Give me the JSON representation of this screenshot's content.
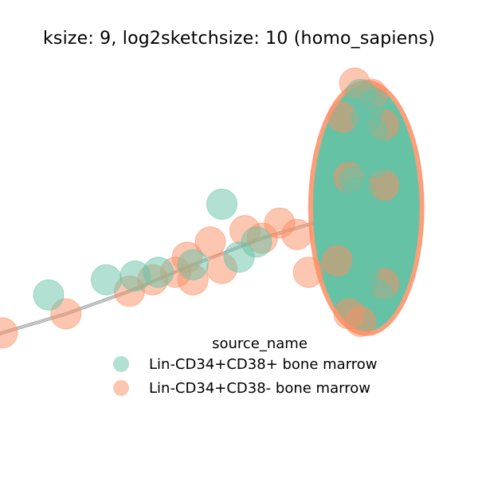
{
  "chart_data": {
    "type": "scatter",
    "title": "ksize: 9, log2sketchsize: 10 (homo_sapiens)",
    "legend": {
      "title": "source_name",
      "placement": "lower-center",
      "entries": [
        {
          "label": "Lin-CD34+CD38+ bone marrow",
          "color": "#66c2a5"
        },
        {
          "label": "Lin-CD34+CD38- bone marrow",
          "color": "#fc8d62"
        }
      ]
    },
    "axes_visible": false,
    "grid": false,
    "series": [
      {
        "name": "Lin-CD34+CD38+ bone marrow",
        "color": "#66c2a5",
        "points": [
          [
            -2.9,
            -1.1
          ],
          [
            -2.75,
            -1.05
          ],
          [
            -2.6,
            -1.0
          ],
          [
            -1.2,
            0.05
          ],
          [
            -0.7,
            0.25
          ],
          [
            -0.45,
            0.3
          ],
          [
            -0.25,
            0.35
          ],
          [
            0.05,
            0.45
          ],
          [
            0.3,
            1.25
          ],
          [
            0.45,
            0.55
          ],
          [
            0.6,
            0.75
          ],
          [
            1.45,
            1.55
          ],
          [
            1.5,
            0.9
          ],
          [
            1.52,
            0.3
          ],
          [
            1.55,
            1.2
          ],
          [
            1.6,
            0.6
          ],
          [
            1.62,
            1.8
          ],
          [
            1.65,
            0.05
          ],
          [
            1.5,
            2.05
          ],
          [
            1.6,
            2.2
          ],
          [
            1.55,
            2.4
          ],
          [
            1.58,
            2.55
          ],
          [
            1.5,
            2.7
          ],
          [
            1.48,
            1.4
          ],
          [
            1.45,
            1.1
          ],
          [
            1.58,
            1.0
          ],
          [
            1.4,
            1.0
          ],
          [
            1.55,
            0.45
          ],
          [
            1.6,
            0.7
          ],
          [
            1.5,
            0.2
          ]
        ]
      },
      {
        "name": "Lin-CD34+CD38- bone marrow",
        "color": "#fc8d62",
        "points": [
          [
            -3.0,
            -1.1
          ],
          [
            -2.95,
            -1.2
          ],
          [
            -2.8,
            -1.15
          ],
          [
            -2.7,
            -1.25
          ],
          [
            -2.9,
            -1.0
          ],
          [
            -2.6,
            -1.05
          ],
          [
            -2.5,
            -0.95
          ],
          [
            -2.35,
            -0.9
          ],
          [
            -2.05,
            -0.7
          ],
          [
            -1.6,
            -0.45
          ],
          [
            -1.05,
            -0.2
          ],
          [
            -0.5,
            0.1
          ],
          [
            -0.3,
            0.25
          ],
          [
            -0.1,
            0.35
          ],
          [
            0.0,
            0.55
          ],
          [
            0.05,
            0.25
          ],
          [
            0.2,
            0.75
          ],
          [
            0.3,
            0.4
          ],
          [
            0.5,
            0.9
          ],
          [
            0.65,
            0.8
          ],
          [
            0.8,
            1.0
          ],
          [
            0.95,
            0.85
          ],
          [
            1.05,
            0.35
          ],
          [
            1.45,
            2.85
          ],
          [
            1.6,
            2.7
          ],
          [
            1.4,
            -0.2
          ],
          [
            1.5,
            -0.3
          ],
          [
            1.35,
            2.4
          ],
          [
            1.7,
            2.3
          ],
          [
            1.7,
            0.2
          ],
          [
            1.3,
            0.5
          ],
          [
            1.4,
            1.6
          ],
          [
            1.7,
            1.5
          ]
        ]
      }
    ],
    "dense_cluster": {
      "series": "Lin-CD34+CD38+ bone marrow",
      "center": [
        1.55,
        1.2
      ],
      "x_range": [
        1.1,
        2.05
      ],
      "y_range": [
        -0.35,
        2.95
      ]
    }
  }
}
